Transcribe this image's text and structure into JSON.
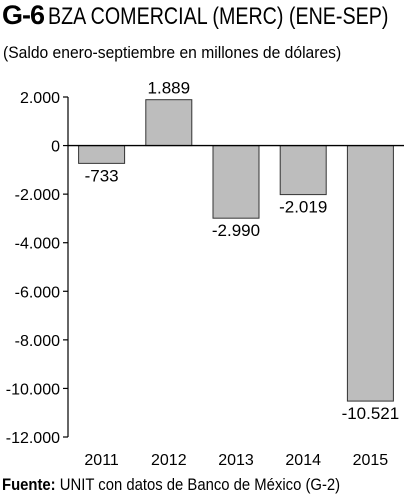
{
  "header": {
    "code": "G-6",
    "title": "BZA COMERCIAL (MERC) (ENE-SEP)",
    "subtitle": "(Saldo enero-septiembre en millones de dólares)"
  },
  "source": {
    "label": "Fuente:",
    "text": "UNIT con datos de Banco de México (G-2)"
  },
  "chart_data": {
    "type": "bar",
    "categories": [
      "2011",
      "2012",
      "2013",
      "2014",
      "2015"
    ],
    "values": [
      -733,
      1889,
      -2990,
      -2019,
      -10521
    ],
    "value_labels": [
      "-733",
      "1.889",
      "-2.990",
      "-2.019",
      "-10.521"
    ],
    "ylim": [
      -12000,
      2000
    ],
    "yticks": [
      2000,
      0,
      -2000,
      -4000,
      -6000,
      -8000,
      -10000,
      -12000
    ],
    "ytick_labels": [
      "2.000",
      "0",
      "-2.000",
      "-4.000",
      "-6.000",
      "-8.000",
      "-10.000",
      "-12.000"
    ],
    "grid": false,
    "colors": {
      "bar_fill": "#bdbdbd",
      "bar_stroke": "#333333",
      "axis": "#000000"
    }
  }
}
